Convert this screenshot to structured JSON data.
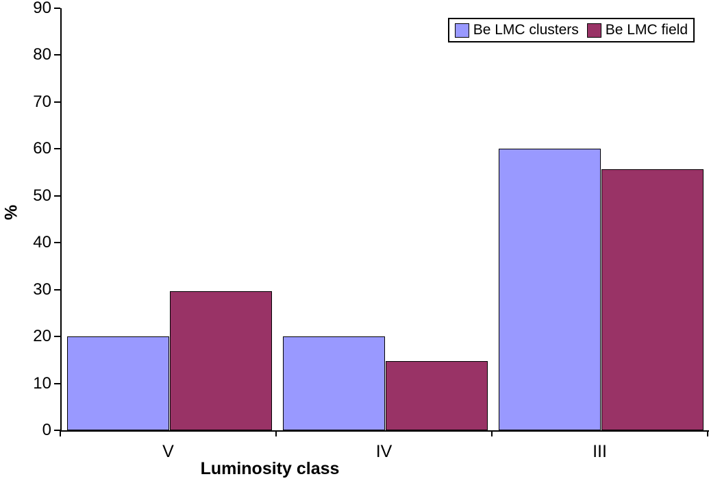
{
  "chart_data": {
    "type": "bar",
    "title": "",
    "xlabel": "Luminosity class",
    "ylabel": "%",
    "categories": [
      "V",
      "IV",
      "III"
    ],
    "series": [
      {
        "name": "Be LMC clusters",
        "color": "#9999FF",
        "values": [
          20,
          20,
          60
        ]
      },
      {
        "name": "Be LMC field",
        "color": "#993366",
        "values": [
          29.6,
          14.8,
          55.7
        ]
      }
    ],
    "ylim": [
      0,
      90
    ],
    "ytick_step": 10,
    "grid": false,
    "legend_position": "top-right",
    "bar_border_color": "#000000",
    "axis_color": "#000000",
    "background_color": "#FFFFFF"
  }
}
